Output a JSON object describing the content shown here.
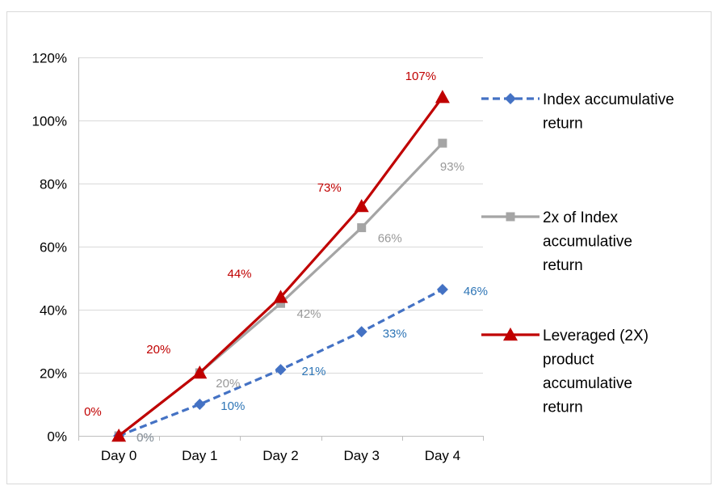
{
  "chart_data": {
    "type": "line",
    "title": "",
    "xlabel": "",
    "ylabel": "",
    "categories": [
      "Day 0",
      "Day 1",
      "Day 2",
      "Day 3",
      "Day 4"
    ],
    "ylim": [
      0,
      1.2
    ],
    "yticks": [
      0,
      0.2,
      0.4,
      0.6,
      0.8,
      1.0,
      1.2
    ],
    "ytick_labels": [
      "0%",
      "20%",
      "40%",
      "60%",
      "80%",
      "100%",
      "120%"
    ],
    "grid": true,
    "legend_position": "right",
    "series": [
      {
        "name": "Index accumulative return",
        "legend_lines": [
          "Index accumulative",
          "return"
        ],
        "values": [
          0,
          0.1,
          0.21,
          0.33,
          0.464
        ],
        "labels": [
          "0%",
          "10%",
          "21%",
          "33%",
          "46%"
        ],
        "color": "#4472C4",
        "label_color": "#2E75B6",
        "marker": "diamond",
        "dash": true
      },
      {
        "name": "2x of Index accumulative return",
        "legend_lines": [
          "2x of Index",
          "accumulative",
          "return"
        ],
        "values": [
          0,
          0.2,
          0.42,
          0.66,
          0.928
        ],
        "labels": [
          "0%",
          "20%",
          "42%",
          "66%",
          "93%"
        ],
        "color": "#A5A5A5",
        "label_color": "#999999",
        "marker": "square",
        "dash": false
      },
      {
        "name": "Leveraged (2X) product accumulative return",
        "legend_lines": [
          "Leveraged (2X)",
          "product",
          "accumulative",
          "return"
        ],
        "values": [
          0,
          0.2,
          0.44,
          0.728,
          1.074
        ],
        "labels": [
          "0%",
          "20%",
          "44%",
          "73%",
          "107%"
        ],
        "color": "#C00000",
        "label_color": "#C00000",
        "marker": "triangle",
        "dash": false
      }
    ]
  }
}
